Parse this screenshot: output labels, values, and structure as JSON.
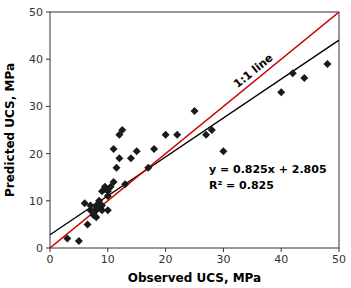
{
  "chart_data": {
    "type": "scatter",
    "xlabel": "Observed UCS, MPa",
    "ylabel": "Predicted UCS, MPa",
    "xlim": [
      0,
      50
    ],
    "ylim": [
      0,
      50
    ],
    "xticks": [
      0,
      10,
      20,
      30,
      40,
      50
    ],
    "yticks": [
      0,
      10,
      20,
      30,
      40,
      50
    ],
    "series": [
      {
        "type": "scatter",
        "color": "#1a1a1a",
        "marker": "diamond",
        "x": [
          3,
          5,
          6,
          6.5,
          7,
          7,
          7.5,
          8,
          8,
          8,
          8,
          8.5,
          8.5,
          9,
          9,
          9,
          9.5,
          9.5,
          10,
          10,
          10,
          10.5,
          11,
          11,
          11.5,
          12,
          12,
          12.5,
          13,
          14,
          15,
          17,
          18,
          20,
          22,
          25,
          27,
          28,
          30,
          40,
          42,
          44,
          48
        ],
        "values": [
          2,
          1.5,
          9.5,
          5,
          8,
          9,
          7,
          8,
          9,
          8.5,
          6.5,
          9,
          10,
          12,
          9,
          8,
          12.5,
          13,
          12,
          11,
          8,
          13,
          14,
          21,
          17,
          19,
          24,
          25,
          13.5,
          19,
          20.5,
          17,
          21,
          24,
          24,
          29,
          24,
          25,
          20.5,
          33,
          37,
          36,
          39
        ]
      },
      {
        "type": "line",
        "color": "#000000",
        "x": [
          0,
          50
        ],
        "values": [
          2.805,
          44.055
        ]
      },
      {
        "type": "line",
        "color": "#cc0000",
        "x": [
          0,
          50
        ],
        "values": [
          0,
          50
        ]
      }
    ],
    "annotations": [
      {
        "text": "y = 0.825x + 2.805"
      },
      {
        "text": "R² = 0.825"
      },
      {
        "text": "1:1 line"
      }
    ]
  }
}
